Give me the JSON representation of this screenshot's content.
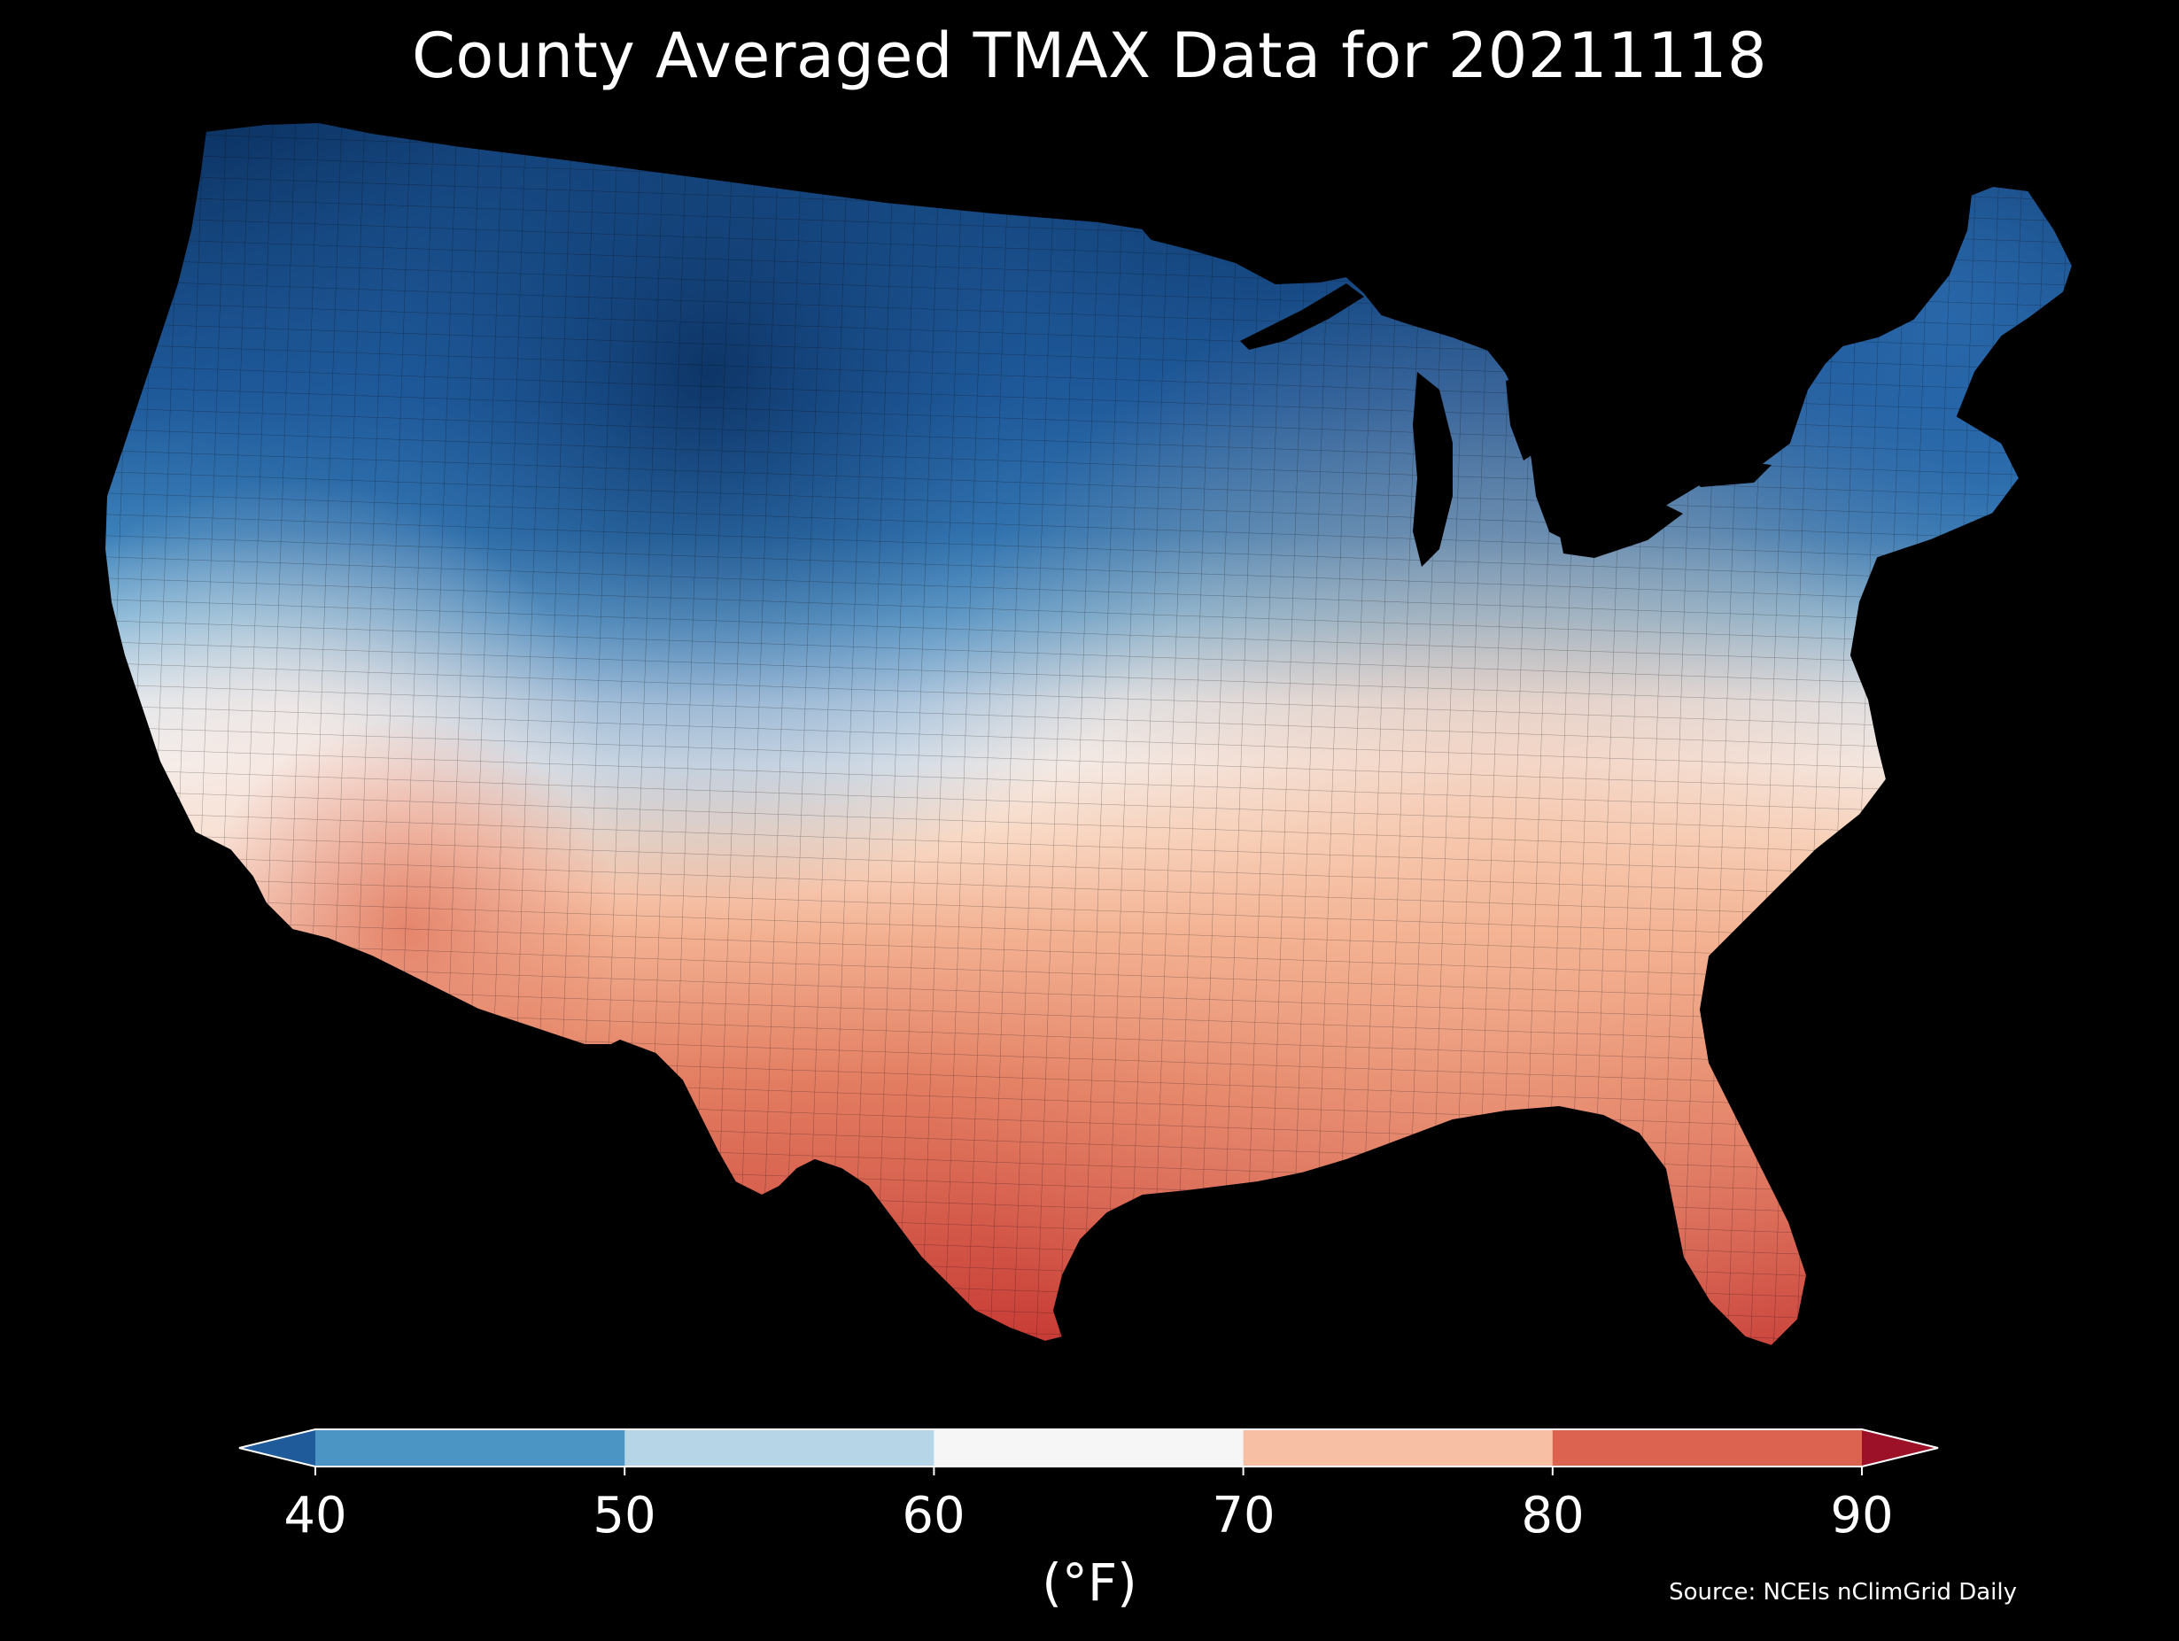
{
  "map": {
    "title": "County Averaged TMAX Data for 20211118",
    "region": "Contiguous United States, county level",
    "background": "#000000"
  },
  "colorbar": {
    "ticks": [
      "40",
      "50",
      "60",
      "70",
      "80",
      "90"
    ],
    "unit": "(°F)",
    "extend": "both",
    "bins": [
      {
        "range": "<40",
        "color": "#1f5a9b"
      },
      {
        "range": "40-50",
        "color": "#4b95c4"
      },
      {
        "range": "50-60",
        "color": "#b6d6e8"
      },
      {
        "range": "60-70",
        "color": "#f6f6f6"
      },
      {
        "range": "70-80",
        "color": "#f7c0a4"
      },
      {
        "range": "80-90",
        "color": "#db6350"
      },
      {
        "range": ">90",
        "color": "#9c1127"
      }
    ]
  },
  "source": "Source: NCEIs nClimGrid Daily"
}
